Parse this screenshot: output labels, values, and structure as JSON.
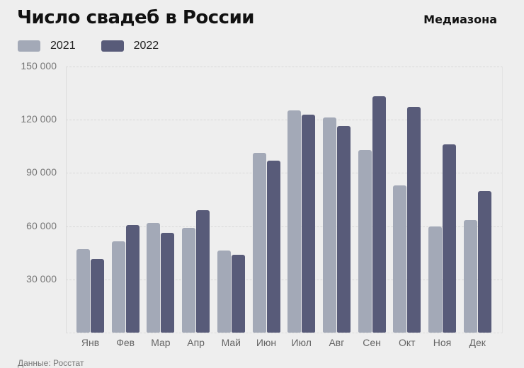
{
  "header": {
    "title": "Число свадеб в России",
    "brand": "Медиазона"
  },
  "legend": [
    {
      "label": "2021",
      "color": "#a3a9b7"
    },
    {
      "label": "2022",
      "color": "#585b79"
    }
  ],
  "footer": {
    "source": "Данные: Росстат"
  },
  "chart_data": {
    "type": "bar",
    "title": "Число свадеб в России",
    "xlabel": "",
    "ylabel": "",
    "ylim": [
      0,
      150000
    ],
    "yticks": [
      0,
      30000,
      60000,
      90000,
      120000,
      150000
    ],
    "ytick_labels": [
      "",
      "30 000",
      "60 000",
      "90 000",
      "120 000",
      "150 000"
    ],
    "grid": true,
    "legend_position": "top-left",
    "categories": [
      "Янв",
      "Фев",
      "Мар",
      "Апр",
      "Май",
      "Июн",
      "Июл",
      "Авг",
      "Сен",
      "Окт",
      "Ноя",
      "Дек"
    ],
    "series": [
      {
        "name": "2021",
        "color": "#a3a9b7",
        "values": [
          47200,
          51600,
          62000,
          59200,
          46400,
          101200,
          125200,
          121200,
          102800,
          82800,
          60000,
          63600
        ]
      },
      {
        "name": "2022",
        "color": "#585b79",
        "values": [
          41600,
          60800,
          56400,
          69200,
          44000,
          96800,
          122800,
          116400,
          133200,
          127200,
          106000,
          79600
        ]
      }
    ],
    "source": "Данные: Росстат"
  }
}
